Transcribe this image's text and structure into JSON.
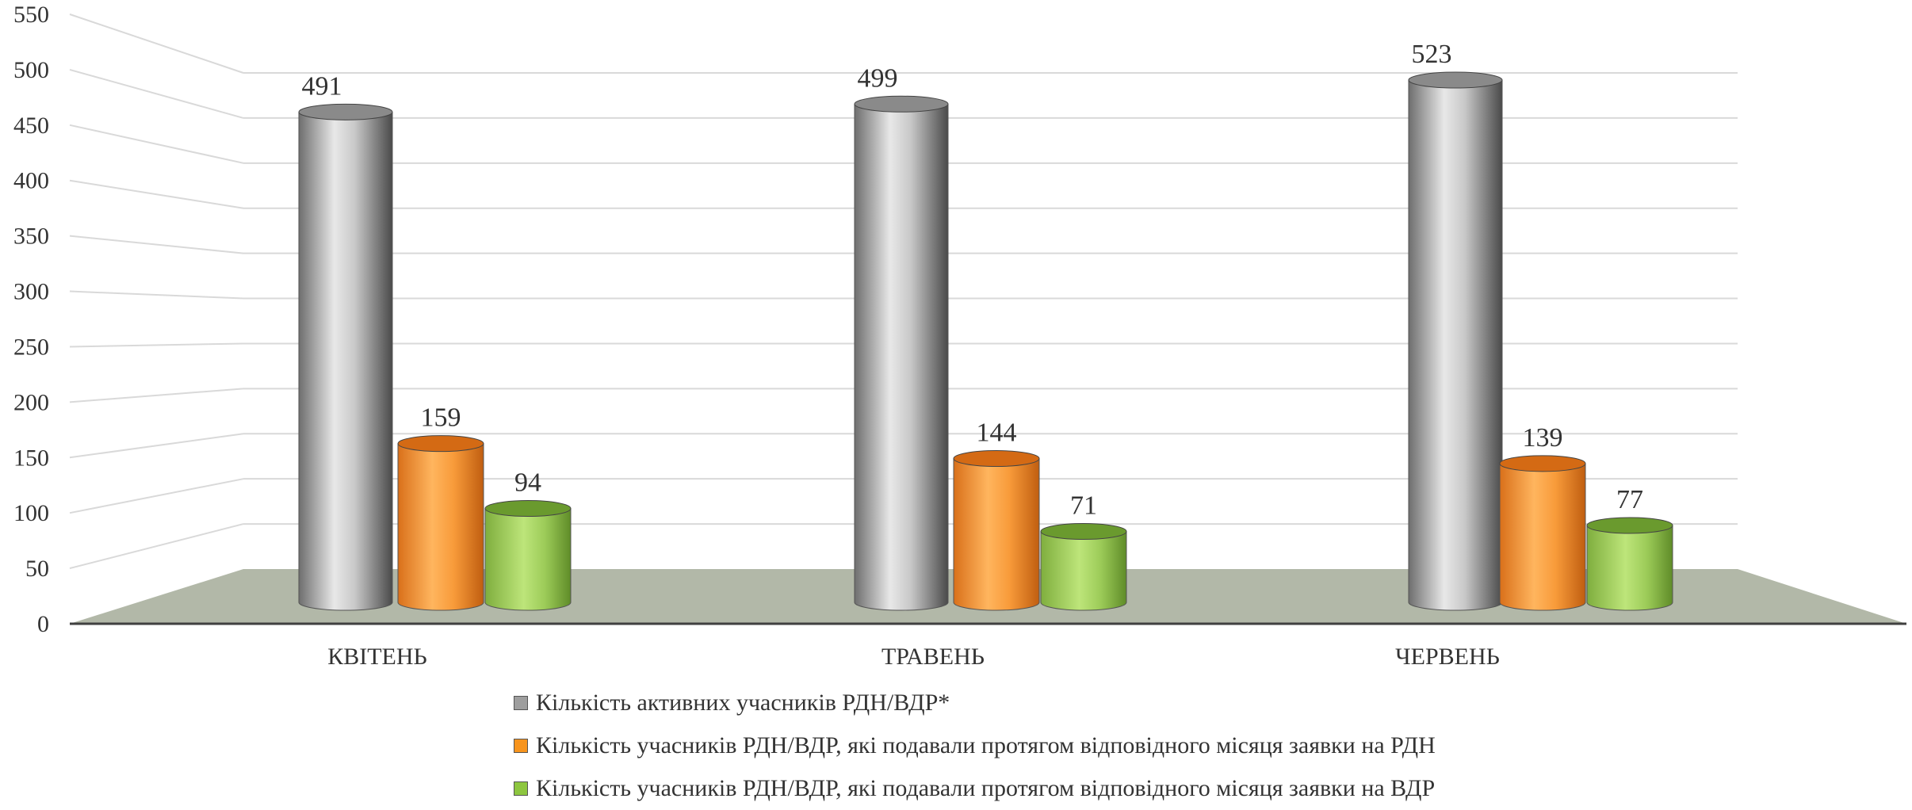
{
  "chart_data": {
    "type": "bar",
    "style": "3d-cylinder",
    "categories": [
      "КВІТЕНЬ",
      "ТРАВЕНЬ",
      "ЧЕРВЕНЬ"
    ],
    "series": [
      {
        "name": "Кількість активних учасників РДН/ВДР*",
        "values": [
          491,
          499,
          523
        ],
        "color": "#a6a6a6"
      },
      {
        "name": "Кількість учасників РДН/ВДР, які подавали протягом відповідного місяця заявки на РДН",
        "values": [
          159,
          144,
          139
        ],
        "color": "#f7941d"
      },
      {
        "name": "Кількість учасників РДН/ВДР, які подавали протягом відповідного місяця заявки на ВДР",
        "values": [
          94,
          71,
          77
        ],
        "color": "#8dc63f"
      }
    ],
    "yticks": [
      "0",
      "50",
      "100",
      "150",
      "200",
      "250",
      "300",
      "350",
      "400",
      "450",
      "500",
      "550"
    ],
    "ylim": [
      0,
      550
    ],
    "grid": true,
    "legend": "bottom",
    "floor_color": "#b2b8a8"
  }
}
